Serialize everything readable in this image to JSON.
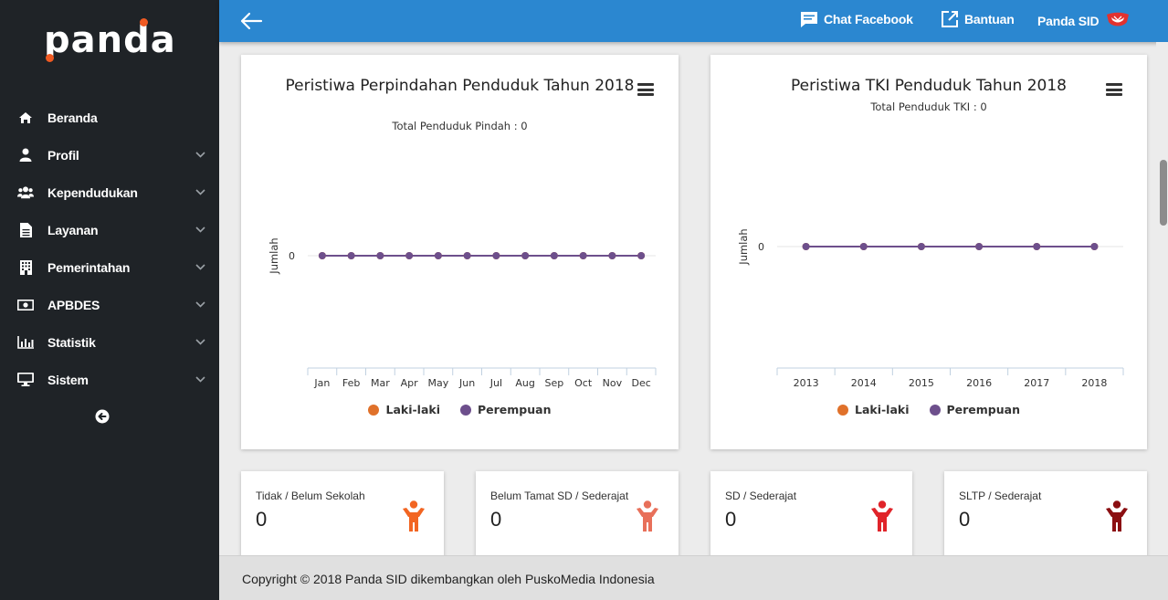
{
  "brand": {
    "logo_text": "panda"
  },
  "header": {
    "chat_label": "Chat Facebook",
    "help_label": "Bantuan",
    "user_label": "Panda SID"
  },
  "sidebar": {
    "items": [
      {
        "label": "Beranda",
        "icon": "home-icon",
        "has_submenu": false
      },
      {
        "label": "Profil",
        "icon": "user-icon",
        "has_submenu": true
      },
      {
        "label": "Kependudukan",
        "icon": "users-icon",
        "has_submenu": true
      },
      {
        "label": "Layanan",
        "icon": "document-icon",
        "has_submenu": true
      },
      {
        "label": "Pemerintahan",
        "icon": "building-icon",
        "has_submenu": true
      },
      {
        "label": "APBDES",
        "icon": "money-icon",
        "has_submenu": true
      },
      {
        "label": "Statistik",
        "icon": "bar-chart-icon",
        "has_submenu": true
      },
      {
        "label": "Sistem",
        "icon": "monitor-icon",
        "has_submenu": true
      }
    ]
  },
  "chart_data": [
    {
      "type": "line",
      "title": "Peristiwa Perpindahan Penduduk Tahun 2018",
      "subtitle": "Total Penduduk Pindah : 0",
      "ylabel": "Jumlah",
      "categories": [
        "Jan",
        "Feb",
        "Mar",
        "Apr",
        "May",
        "Jun",
        "Jul",
        "Aug",
        "Sep",
        "Oct",
        "Nov",
        "Dec"
      ],
      "yticks": [
        "0"
      ],
      "series": [
        {
          "name": "Laki-laki",
          "color": "#e0712a",
          "values": [
            0,
            0,
            0,
            0,
            0,
            0,
            0,
            0,
            0,
            0,
            0,
            0
          ]
        },
        {
          "name": "Perempuan",
          "color": "#6d4f8c",
          "values": [
            0,
            0,
            0,
            0,
            0,
            0,
            0,
            0,
            0,
            0,
            0,
            0
          ]
        }
      ],
      "legend": "bottom"
    },
    {
      "type": "line",
      "title": "Peristiwa TKI Penduduk Tahun 2018",
      "subtitle": "Total Penduduk TKI : 0",
      "ylabel": "Jumlah",
      "categories": [
        "2013",
        "2014",
        "2015",
        "2016",
        "2017",
        "2018"
      ],
      "yticks": [
        "0"
      ],
      "series": [
        {
          "name": "Laki-laki",
          "color": "#e0712a",
          "values": [
            0,
            0,
            0,
            0,
            0,
            0
          ]
        },
        {
          "name": "Perempuan",
          "color": "#6d4f8c",
          "values": [
            0,
            0,
            0,
            0,
            0,
            0
          ]
        }
      ],
      "legend": "bottom"
    }
  ],
  "stats": [
    {
      "label": "Tidak / Belum Sekolah",
      "value": "0",
      "icon": "person-icon",
      "color": "#f26522"
    },
    {
      "label": "Belum Tamat SD / Sederajat",
      "value": "0",
      "icon": "person-icon",
      "color": "#e8705a"
    },
    {
      "label": "SD / Sederajat",
      "value": "0",
      "icon": "person-icon",
      "color": "#e0242a"
    },
    {
      "label": "SLTP / Sederajat",
      "value": "0",
      "icon": "person-icon",
      "color": "#8b0f12"
    }
  ],
  "footer": {
    "text": "Copyright © 2018 Panda SID dikembangkan oleh PuskoMedia Indonesia"
  }
}
